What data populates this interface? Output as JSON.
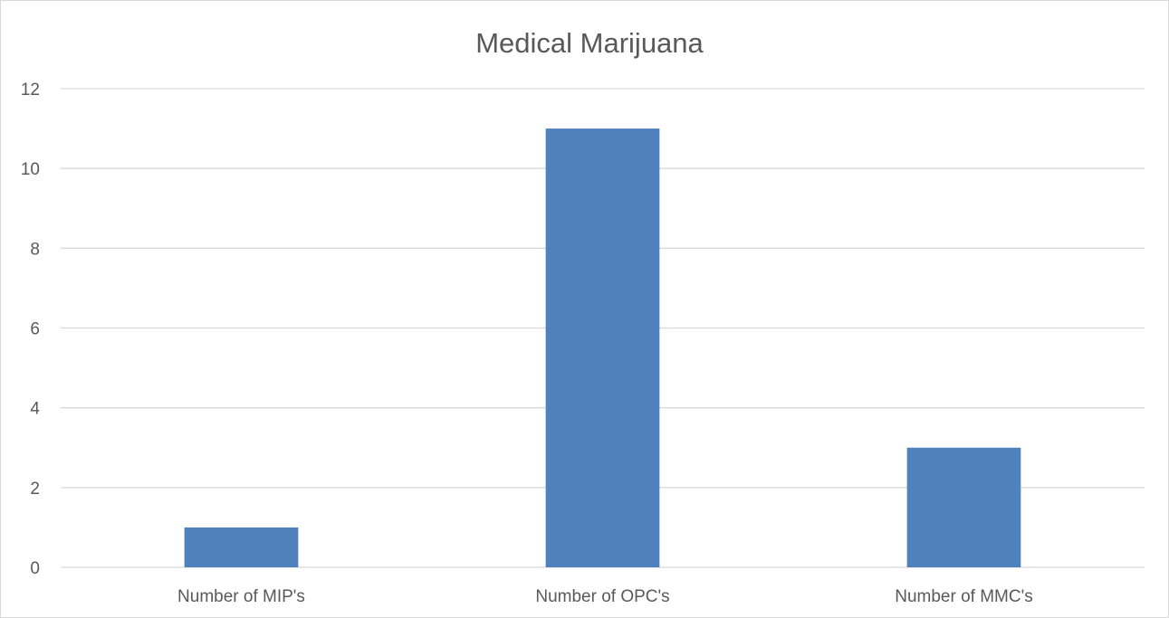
{
  "chart_data": {
    "type": "bar",
    "title": "Medical Marijuana",
    "categories": [
      "Number of MIP's",
      "Number of OPC's",
      "Number of MMC's"
    ],
    "values": [
      1,
      11,
      3
    ],
    "ylim": [
      0,
      12
    ],
    "yticks": [
      0,
      2,
      4,
      6,
      8,
      10,
      12
    ],
    "grid": true,
    "xlabel": "",
    "ylabel": "",
    "bar_color": "#4f81bd",
    "gridline_color": "#d9d9d9",
    "text_color": "#595959"
  }
}
